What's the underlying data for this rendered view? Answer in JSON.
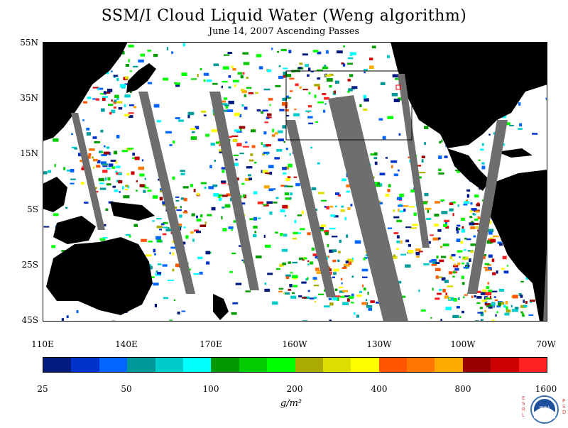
{
  "title": "SSM/I Cloud Liquid Water (Weng algorithm)",
  "subtitle": "June 14, 2007  Ascending Passes",
  "lat_labels": [
    "55N",
    "35N",
    "15N",
    "5S",
    "25S",
    "45S"
  ],
  "lon_labels": [
    "110E",
    "140E",
    "170E",
    "160W",
    "130W",
    "100W",
    "70W"
  ],
  "colorbar": {
    "colors": [
      "#001a80",
      "#0033cc",
      "#0066ff",
      "#009999",
      "#00cccc",
      "#00ffff",
      "#009900",
      "#00cc00",
      "#00ff00",
      "#aaaa00",
      "#dddd00",
      "#ffff00",
      "#ff5500",
      "#ff7700",
      "#ffaa00",
      "#990000",
      "#cc0000",
      "#ff2222"
    ],
    "labels": [
      "25",
      "50",
      "100",
      "200",
      "400",
      "800",
      "1600"
    ],
    "unit": "g/m²"
  },
  "logo": {
    "left_text": "ESRL",
    "right_text": "PSD",
    "text": "NOAA"
  }
}
